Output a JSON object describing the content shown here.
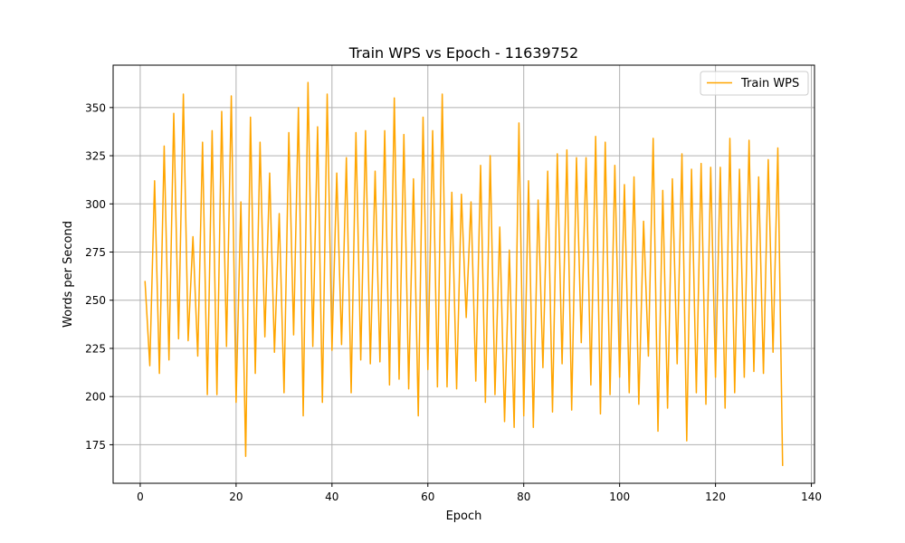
{
  "chart_data": {
    "type": "line",
    "title": "Train WPS vs Epoch - 11639752",
    "xlabel": "Epoch",
    "ylabel": "Words per Second",
    "xlim": [
      -5.65,
      140.65
    ],
    "ylim": [
      155,
      372
    ],
    "x_ticks": [
      0,
      20,
      40,
      60,
      80,
      100,
      120,
      140
    ],
    "y_ticks": [
      175,
      200,
      225,
      250,
      275,
      300,
      325,
      350
    ],
    "grid": true,
    "legend_position": "upper-right",
    "colors": {
      "series": "#ffa500",
      "grid": "#b0b0b0",
      "frame": "#000000"
    },
    "series": [
      {
        "name": "Train WPS",
        "x": [
          1,
          2,
          3,
          4,
          5,
          6,
          7,
          8,
          9,
          10,
          11,
          12,
          13,
          14,
          15,
          16,
          17,
          18,
          19,
          20,
          21,
          22,
          23,
          24,
          25,
          26,
          27,
          28,
          29,
          30,
          31,
          32,
          33,
          34,
          35,
          36,
          37,
          38,
          39,
          40,
          41,
          42,
          43,
          44,
          45,
          46,
          47,
          48,
          49,
          50,
          51,
          52,
          53,
          54,
          55,
          56,
          57,
          58,
          59,
          60,
          61,
          62,
          63,
          64,
          65,
          66,
          67,
          68,
          69,
          70,
          71,
          72,
          73,
          74,
          75,
          76,
          77,
          78,
          79,
          80,
          81,
          82,
          83,
          84,
          85,
          86,
          87,
          88,
          89,
          90,
          91,
          92,
          93,
          94,
          95,
          96,
          97,
          98,
          99,
          100,
          101,
          102,
          103,
          104,
          105,
          106,
          107,
          108,
          109,
          110,
          111,
          112,
          113,
          114,
          115,
          116,
          117,
          118,
          119,
          120,
          121,
          122,
          123,
          124,
          125,
          126,
          127,
          128,
          129,
          130,
          131,
          132,
          133,
          134
        ],
        "values": [
          260,
          216,
          312,
          212,
          330,
          219,
          347,
          230,
          357,
          229,
          283,
          221,
          332,
          201,
          338,
          201,
          348,
          226,
          356,
          197,
          301,
          169,
          345,
          212,
          332,
          231,
          316,
          223,
          295,
          202,
          337,
          232,
          350,
          190,
          363,
          226,
          340,
          197,
          357,
          224,
          316,
          227,
          324,
          202,
          337,
          219,
          338,
          217,
          317,
          218,
          338,
          206,
          355,
          209,
          336,
          204,
          313,
          190,
          345,
          214,
          338,
          205,
          357,
          205,
          306,
          204,
          305,
          241,
          301,
          208,
          320,
          197,
          325,
          201,
          288,
          187,
          276,
          184,
          342,
          190,
          312,
          184,
          302,
          215,
          317,
          192,
          326,
          217,
          328,
          193,
          324,
          228,
          324,
          206,
          335,
          191,
          332,
          201,
          320,
          210,
          310,
          202,
          314,
          196,
          291,
          221,
          334,
          182,
          307,
          194,
          313,
          217,
          326,
          177,
          318,
          202,
          321,
          196,
          319,
          210,
          319,
          194,
          334,
          202,
          318,
          210,
          333,
          213,
          314,
          212,
          323,
          223,
          329,
          164
        ]
      }
    ]
  }
}
